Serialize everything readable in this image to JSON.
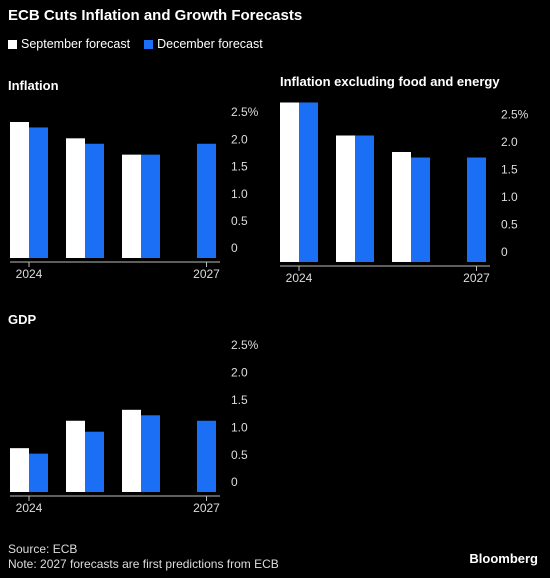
{
  "title": "ECB Cuts Inflation and Growth Forecasts",
  "source": "Source: ECB",
  "note": "Note: 2027 forecasts are first predictions from ECB",
  "brand": "Bloomberg",
  "chart_data": [
    {
      "type": "bar",
      "title": "Inflation",
      "categories": [
        "2024",
        null,
        null,
        "2027"
      ],
      "series": [
        {
          "name": "September forecast",
          "color": "#ffffff",
          "values": [
            2.5,
            2.2,
            1.9,
            null
          ]
        },
        {
          "name": "December forecast",
          "color": "#1a6ff5",
          "values": [
            2.4,
            2.1,
            1.9,
            2.1
          ]
        }
      ],
      "ylim": [
        0,
        2.5
      ],
      "yticks": [
        0,
        0.5,
        {
          "value": 1,
          "label": "1.0"
        },
        1.5,
        {
          "value": 2,
          "label": "2.0"
        },
        {
          "value": 2.5,
          "label": "2.5%"
        }
      ]
    },
    {
      "type": "bar",
      "title": "Inflation excluding food and energy",
      "categories": [
        "2024",
        null,
        null,
        "2027"
      ],
      "series": [
        {
          "name": "September forecast",
          "color": "#ffffff",
          "values": [
            2.9,
            2.3,
            2.0,
            null
          ]
        },
        {
          "name": "December forecast",
          "color": "#1a6ff5",
          "values": [
            2.9,
            2.3,
            1.9,
            1.9
          ]
        }
      ],
      "ylim": [
        0,
        2.9
      ],
      "yticks": [
        0,
        0.5,
        {
          "value": 1,
          "label": "1.0"
        },
        1.5,
        {
          "value": 2,
          "label": "2.0"
        },
        {
          "value": 2.5,
          "label": "2.5%"
        }
      ]
    },
    {
      "type": "bar",
      "title": "GDP",
      "categories": [
        "2024",
        null,
        null,
        "2027"
      ],
      "series": [
        {
          "name": "September forecast",
          "color": "#ffffff",
          "values": [
            0.8,
            1.3,
            1.5,
            null
          ]
        },
        {
          "name": "December forecast",
          "color": "#1a6ff5",
          "values": [
            0.7,
            1.1,
            1.4,
            1.3
          ]
        }
      ],
      "ylim": [
        0,
        2.5
      ],
      "yticks": [
        0,
        0.5,
        {
          "value": 1,
          "label": "1.0"
        },
        1.5,
        {
          "value": 2,
          "label": "2.0"
        },
        {
          "value": 2.5,
          "label": "2.5%"
        }
      ]
    }
  ]
}
